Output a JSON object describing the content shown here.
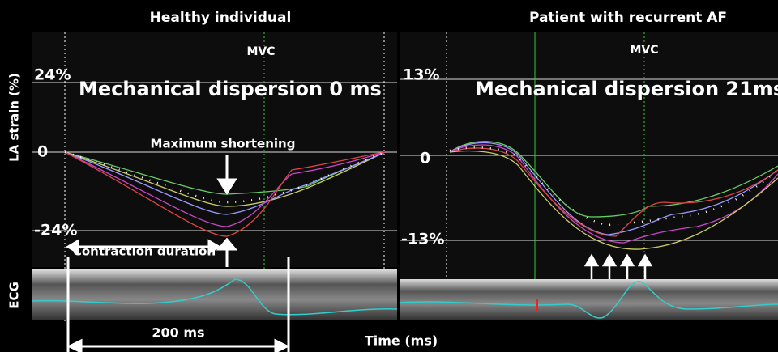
{
  "left": {
    "title": "Healthy individual",
    "mvc": "MVC",
    "y_top": "24%",
    "headline": "Mechanical dispersion 0 ms",
    "y_zero": "0",
    "y_bottom": "-24%",
    "arrow_label": "Maximum shortening",
    "duration_label": "Contraction duration",
    "scale_label": "200 ms"
  },
  "right": {
    "title": "Patient with recurrent AF",
    "mvc": "MVC",
    "y_top": "13%",
    "headline": "Mechanical dispersion 21ms",
    "y_zero": "0",
    "y_bottom": "-13%"
  },
  "y_axis_label": "LA strain (%)",
  "ecg_label": "ECG",
  "x_axis_label": "Time (ms)"
}
